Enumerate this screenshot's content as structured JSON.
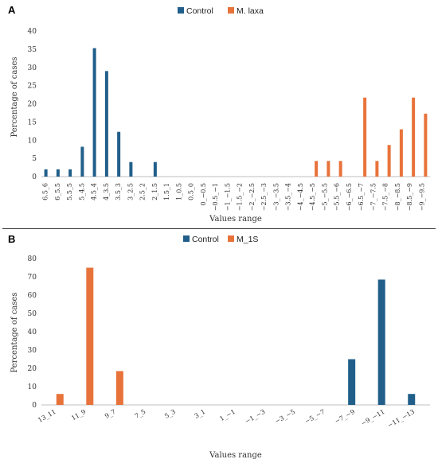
{
  "colors": {
    "control": "#215f8a",
    "treatment": "#e8733a"
  },
  "chart_data": [
    {
      "type": "bar",
      "panel": "A",
      "ylabel": "Percentage of cases",
      "xlabel": "Values range",
      "ylim": [
        0,
        40
      ],
      "yticks": [
        0,
        5,
        10,
        15,
        20,
        25,
        30,
        35,
        40
      ],
      "legend": "top",
      "categories": [
        "6.5_6",
        "6_5.5",
        "5.5_5",
        "5_4.5",
        "4.5_4",
        "4_3.5",
        "3.5_3",
        "3_2.5",
        "2.5_2",
        "2_1.5",
        "1.5_1",
        "1_0.5",
        "0.5_0",
        "0_−0.5",
        "−0.5_−1",
        "−1_−1.5",
        "−1.5_−2",
        "−2_−2.5",
        "−2.5_−3",
        "−3_−3.5",
        "−3.5_−4",
        "−4_−4.5",
        "−4.5_−5",
        "−5_−5.5",
        "−5.5_−6",
        "−6_−6.5",
        "−6.5_−7",
        "−7_−7.5",
        "−7.5_−8",
        "−8_−8.5",
        "−8.5_−9",
        "−9_−9.5"
      ],
      "series": [
        {
          "name": "Control",
          "color": "#215f8a",
          "values": [
            2,
            2,
            2,
            8.2,
            35.3,
            29,
            12.3,
            4,
            0,
            4,
            0,
            0,
            0,
            0,
            0,
            0,
            0,
            0,
            0,
            0,
            0,
            0,
            0,
            0,
            0,
            0,
            0,
            0,
            0,
            0,
            0,
            0
          ]
        },
        {
          "name": "M. laxa",
          "color": "#e8733a",
          "values": [
            0,
            0,
            0,
            0,
            0,
            0,
            0,
            0,
            0,
            0,
            0,
            0,
            0,
            0,
            0,
            0,
            0,
            0,
            0,
            0,
            0,
            0,
            4.3,
            4.3,
            4.3,
            0,
            21.7,
            4.3,
            8.7,
            13,
            21.7,
            17.3
          ]
        }
      ]
    },
    {
      "type": "bar",
      "panel": "B",
      "ylabel": "Percentage of cases",
      "xlabel": "Values range",
      "ylim": [
        0,
        80
      ],
      "yticks": [
        0,
        10,
        20,
        30,
        40,
        50,
        60,
        70,
        80
      ],
      "legend": "top",
      "categories": [
        "13_11",
        "11_9",
        "9_7",
        "7_5",
        "5_3",
        "3_1",
        "1_−1",
        "−1_−3",
        "−3_−5",
        "−5_−7",
        "−7_−9",
        "−9_−11",
        "−11_−13"
      ],
      "series": [
        {
          "name": "Control",
          "color": "#215f8a",
          "values": [
            0,
            0,
            0,
            0,
            0,
            0,
            0,
            0,
            0,
            0,
            25,
            68.5,
            6
          ]
        },
        {
          "name": "M_1S",
          "color": "#e8733a",
          "values": [
            6,
            75,
            18.5,
            0,
            0,
            0,
            0,
            0,
            0,
            0,
            0,
            0,
            0
          ]
        }
      ]
    }
  ]
}
